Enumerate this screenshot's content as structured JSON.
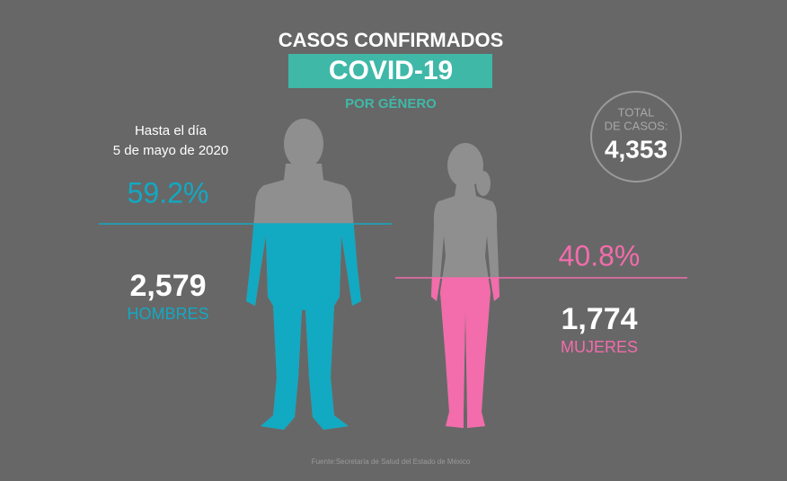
{
  "header": {
    "title": "CASOS CONFIRMADOS",
    "subtitle": "COVID-19",
    "tagline": "POR GÉNERO"
  },
  "date": {
    "line1": "Hasta el día",
    "line2": "5 de mayo de 2020"
  },
  "men": {
    "percent": "59.2%",
    "count": "2,579",
    "label": "HOMBRES"
  },
  "women": {
    "percent": "40.8%",
    "count": "1,774",
    "label": "MUJERES"
  },
  "total": {
    "label1": "TOTAL",
    "label2": "DE CASOS:",
    "value": "4,353"
  },
  "source": "Fuente:Secretaría de Salud del Estado de México"
}
